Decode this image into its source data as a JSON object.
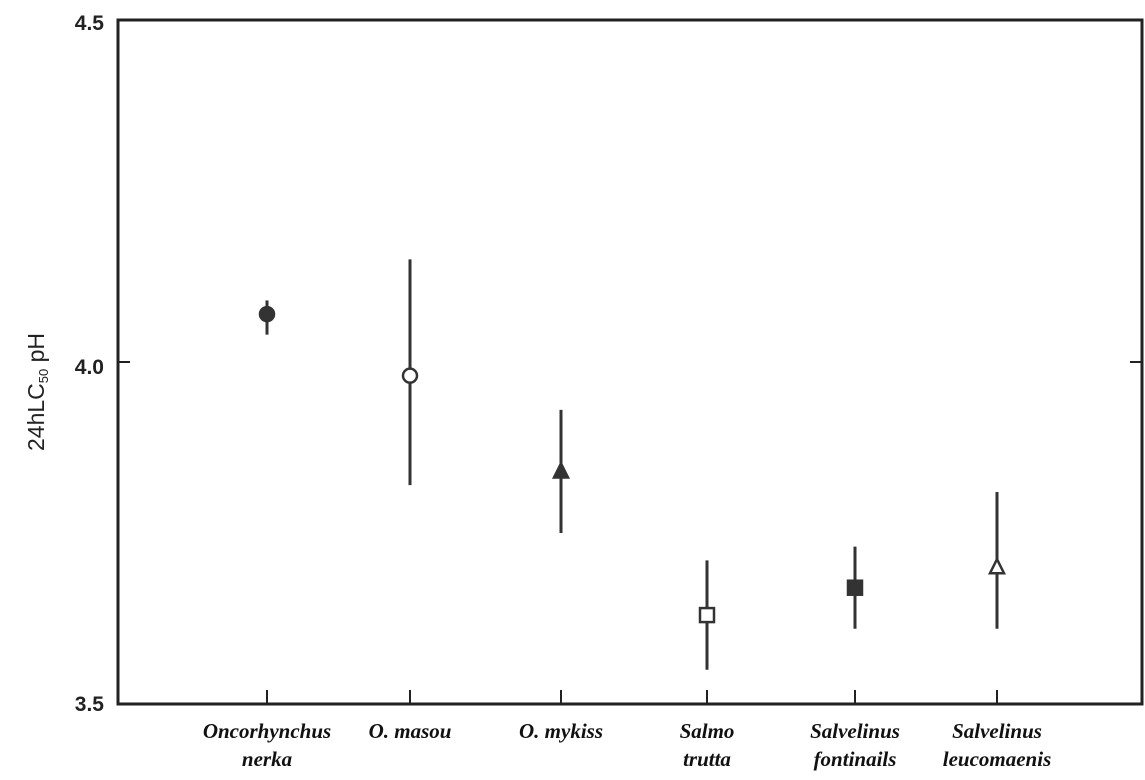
{
  "chart_data": {
    "type": "scatter",
    "title": "",
    "xlabel": "",
    "ylabel": {
      "prefix": "24hLC",
      "subscript": "50",
      "suffix": " pH"
    },
    "ylim": [
      3.5,
      4.5
    ],
    "yticks": [
      "3.5",
      "4.0",
      "4.5"
    ],
    "grid": false,
    "legend": "none",
    "categories": [
      [
        "Oncorhynchus",
        "nerka"
      ],
      [
        "O. masou"
      ],
      [
        "O. mykiss"
      ],
      [
        "Salmo",
        "trutta"
      ],
      [
        "Salvelinus",
        "fontinails"
      ],
      [
        "Salvelinus",
        "leucomaenis"
      ]
    ],
    "points": [
      {
        "y": 4.07,
        "low": 4.04,
        "high": 4.09,
        "marker": "circle-filled"
      },
      {
        "y": 3.98,
        "low": 3.82,
        "high": 4.15,
        "marker": "circle-open"
      },
      {
        "y": 3.84,
        "low": 3.75,
        "high": 3.93,
        "marker": "triangle-filled"
      },
      {
        "y": 3.63,
        "low": 3.55,
        "high": 3.71,
        "marker": "square-open"
      },
      {
        "y": 3.67,
        "low": 3.61,
        "high": 3.73,
        "marker": "square-filled"
      },
      {
        "y": 3.7,
        "low": 3.61,
        "high": 3.81,
        "marker": "triangle-open"
      }
    ]
  }
}
